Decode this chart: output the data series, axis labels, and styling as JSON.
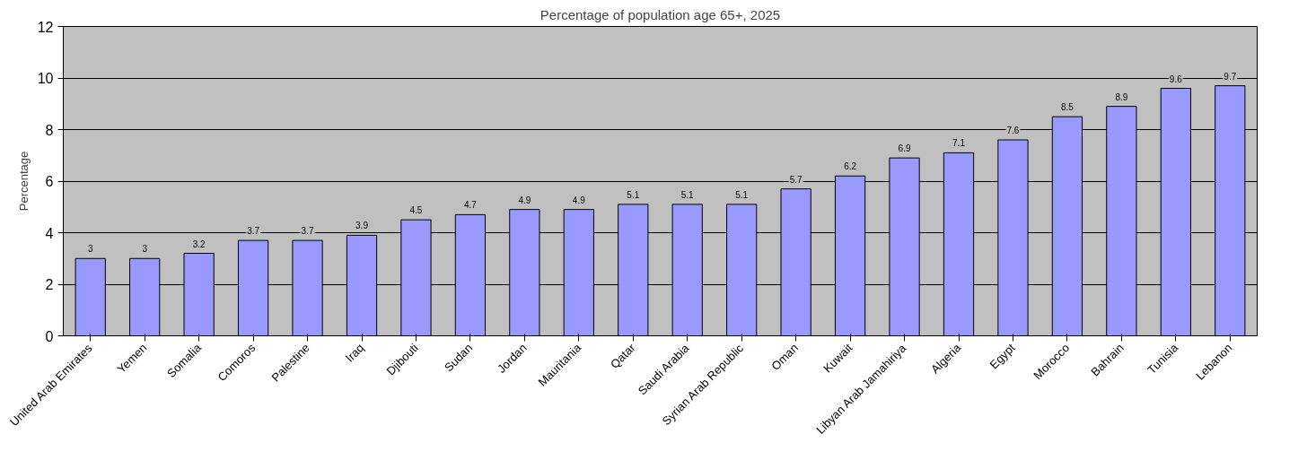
{
  "chart_data": {
    "type": "bar",
    "title": "Percentage of population age 65+, 2025",
    "ylabel": "Percentage",
    "categories": [
      "United Arab Emirates",
      "Yemen",
      "Somalia",
      "Comoros",
      "Palestine",
      "Iraq",
      "Djibouti",
      "Sudan",
      "Jordan",
      "Mauritania",
      "Qatar",
      "Saudi Arabia",
      "Syrian Arab Republic",
      "Oman",
      "Kuwait",
      "Libyan Arab Jamahiriya",
      "Algeria",
      "Egypt",
      "Morocco",
      "Bahrain",
      "Tunisia",
      "Lebanon"
    ],
    "values": [
      3,
      3,
      3.2,
      3.7,
      3.7,
      3.9,
      4.5,
      4.7,
      4.9,
      4.9,
      5.1,
      5.1,
      5.1,
      5.7,
      6.2,
      6.9,
      7.1,
      7.6,
      8.5,
      8.9,
      9.6,
      9.7
    ],
    "color": "#9999ff",
    "ylim": [
      0,
      12
    ],
    "yticks": [
      0,
      2,
      4,
      6,
      8,
      10,
      12
    ],
    "grid": "y",
    "data_labels": true
  }
}
